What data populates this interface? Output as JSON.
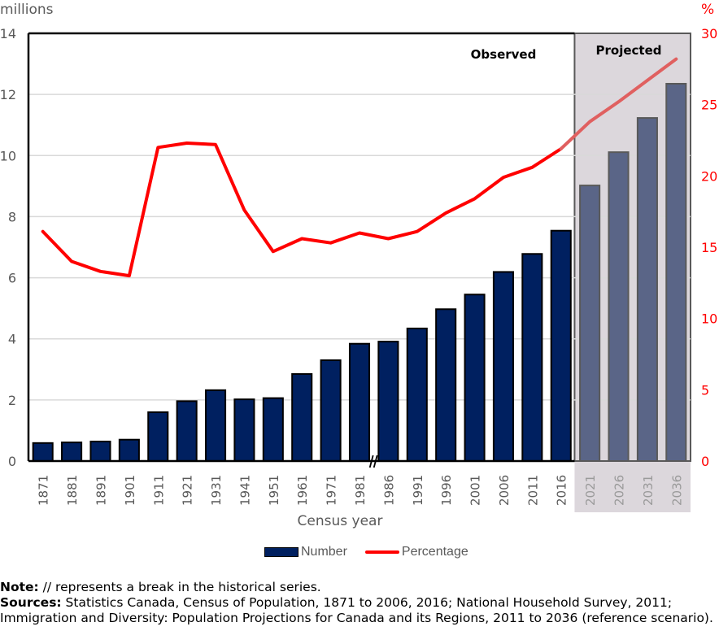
{
  "chart_data": {
    "type": "bar",
    "title": "",
    "xlabel": "Census year",
    "ylabel": "millions",
    "y2label": "%",
    "ylim": [
      0,
      14
    ],
    "y2lim": [
      0,
      30
    ],
    "yticks": [
      "0",
      "2",
      "4",
      "6",
      "8",
      "10",
      "12",
      "14"
    ],
    "y2ticks": [
      "0",
      "5",
      "10",
      "15",
      "20",
      "25",
      "30"
    ],
    "grid": true,
    "legend_position": "bottom",
    "categories": [
      "1871",
      "1881",
      "1891",
      "1901",
      "1911",
      "1921",
      "1931",
      "1941",
      "1951",
      "1961",
      "1971",
      "1981",
      "1986",
      "1991",
      "1996",
      "2001",
      "2006",
      "2011",
      "2016",
      "2021",
      "2026",
      "2031",
      "2036"
    ],
    "projected_categories": [
      "2021",
      "2026",
      "2031",
      "2036"
    ],
    "series_break_after": "1981",
    "regions": [
      {
        "label": "Observed",
        "from": "1871",
        "to": "2016"
      },
      {
        "label": "Projected",
        "from": "2021",
        "to": "2036"
      }
    ],
    "series": [
      {
        "name": "Number",
        "type": "bar",
        "axis": "left",
        "color": "#002060",
        "projected_color": "#5a6587",
        "values": [
          0.59,
          0.61,
          0.64,
          0.7,
          1.6,
          1.96,
          2.32,
          2.02,
          2.06,
          2.85,
          3.3,
          3.84,
          3.91,
          4.34,
          4.97,
          5.45,
          6.19,
          6.78,
          7.54,
          9.02,
          10.11,
          11.23,
          12.35
        ]
      },
      {
        "name": "Percentage",
        "type": "line",
        "axis": "right",
        "color": "#ff0000",
        "projected_color": "#e06060",
        "values": [
          16.1,
          14.0,
          13.3,
          13.0,
          22.0,
          22.3,
          22.2,
          17.6,
          14.7,
          15.6,
          15.3,
          16.0,
          15.6,
          16.1,
          17.4,
          18.4,
          19.9,
          20.6,
          21.9,
          23.8,
          25.2,
          26.7,
          28.2
        ]
      }
    ]
  },
  "legend": {
    "number_label": "Number",
    "percentage_label": "Percentage"
  },
  "notes": {
    "note_label": "Note:",
    "note_text": " // represents a break in the historical series.",
    "sources_label": "Sources:",
    "sources_text": " Statistics Canada, Census of Population, 1871 to 2006, 2016; National Household Survey, 2011; Immigration and Diversity: Population Projections for Canada and its Regions, 2011 to 2036 (reference scenario)."
  }
}
